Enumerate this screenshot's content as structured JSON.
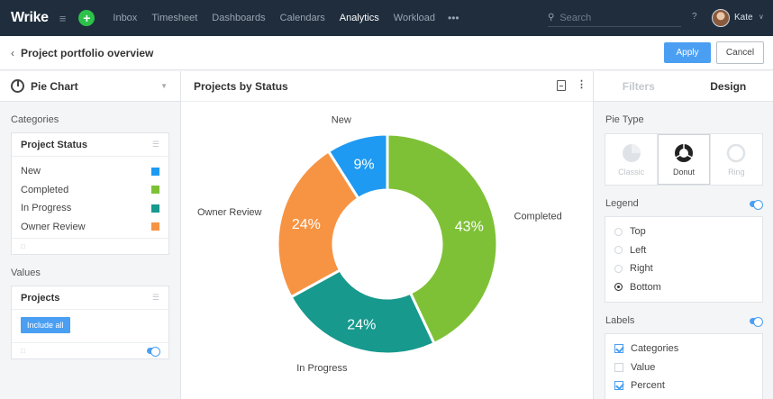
{
  "nav": {
    "logo": "Wrike",
    "links": [
      {
        "label": "Inbox",
        "active": false
      },
      {
        "label": "Timesheet",
        "active": false
      },
      {
        "label": "Dashboards",
        "active": false
      },
      {
        "label": "Calendars",
        "active": false
      },
      {
        "label": "Analytics",
        "active": true
      },
      {
        "label": "Workload",
        "active": false
      }
    ],
    "more": "•••",
    "search_placeholder": "Search",
    "help": "?",
    "user_name": "Kate"
  },
  "header": {
    "title": "Project portfolio overview",
    "apply_label": "Apply",
    "cancel_label": "Cancel"
  },
  "left": {
    "chart_type": "Pie Chart",
    "categories_label": "Categories",
    "category_field": "Project Status",
    "categories": [
      {
        "label": "New",
        "color": "#1e9af2"
      },
      {
        "label": "Completed",
        "color": "#7ec136"
      },
      {
        "label": "In Progress",
        "color": "#17998d"
      },
      {
        "label": "Owner Review",
        "color": "#f79443"
      }
    ],
    "values_label": "Values",
    "value_field": "Projects",
    "include_all": "Include all"
  },
  "chart_header": {
    "title": "Projects by Status"
  },
  "chart_data": {
    "type": "pie",
    "style": "donut",
    "title": "Projects by Status",
    "slices": [
      {
        "name": "Completed",
        "value": 43,
        "label": "43%",
        "color": "#7ec136"
      },
      {
        "name": "In Progress",
        "value": 24,
        "label": "24%",
        "color": "#17998d"
      },
      {
        "name": "Owner Review",
        "value": 24,
        "label": "24%",
        "color": "#f79443"
      },
      {
        "name": "New",
        "value": 9,
        "label": "9%",
        "color": "#1e9af2"
      }
    ]
  },
  "right": {
    "tabs": [
      "Filters",
      "Design"
    ],
    "active_tab": "Design",
    "pie_type_label": "Pie Type",
    "pie_types": [
      {
        "label": "Classic",
        "selected": false
      },
      {
        "label": "Donut",
        "selected": true
      },
      {
        "label": "Ring",
        "selected": false
      }
    ],
    "legend_label": "Legend",
    "legend_options": [
      {
        "label": "Top",
        "checked": false
      },
      {
        "label": "Left",
        "checked": false
      },
      {
        "label": "Right",
        "checked": false
      },
      {
        "label": "Bottom",
        "checked": true
      }
    ],
    "labels_label": "Labels",
    "label_options": [
      {
        "label": "Categories",
        "checked": true
      },
      {
        "label": "Value",
        "checked": false
      },
      {
        "label": "Percent",
        "checked": true
      }
    ]
  }
}
